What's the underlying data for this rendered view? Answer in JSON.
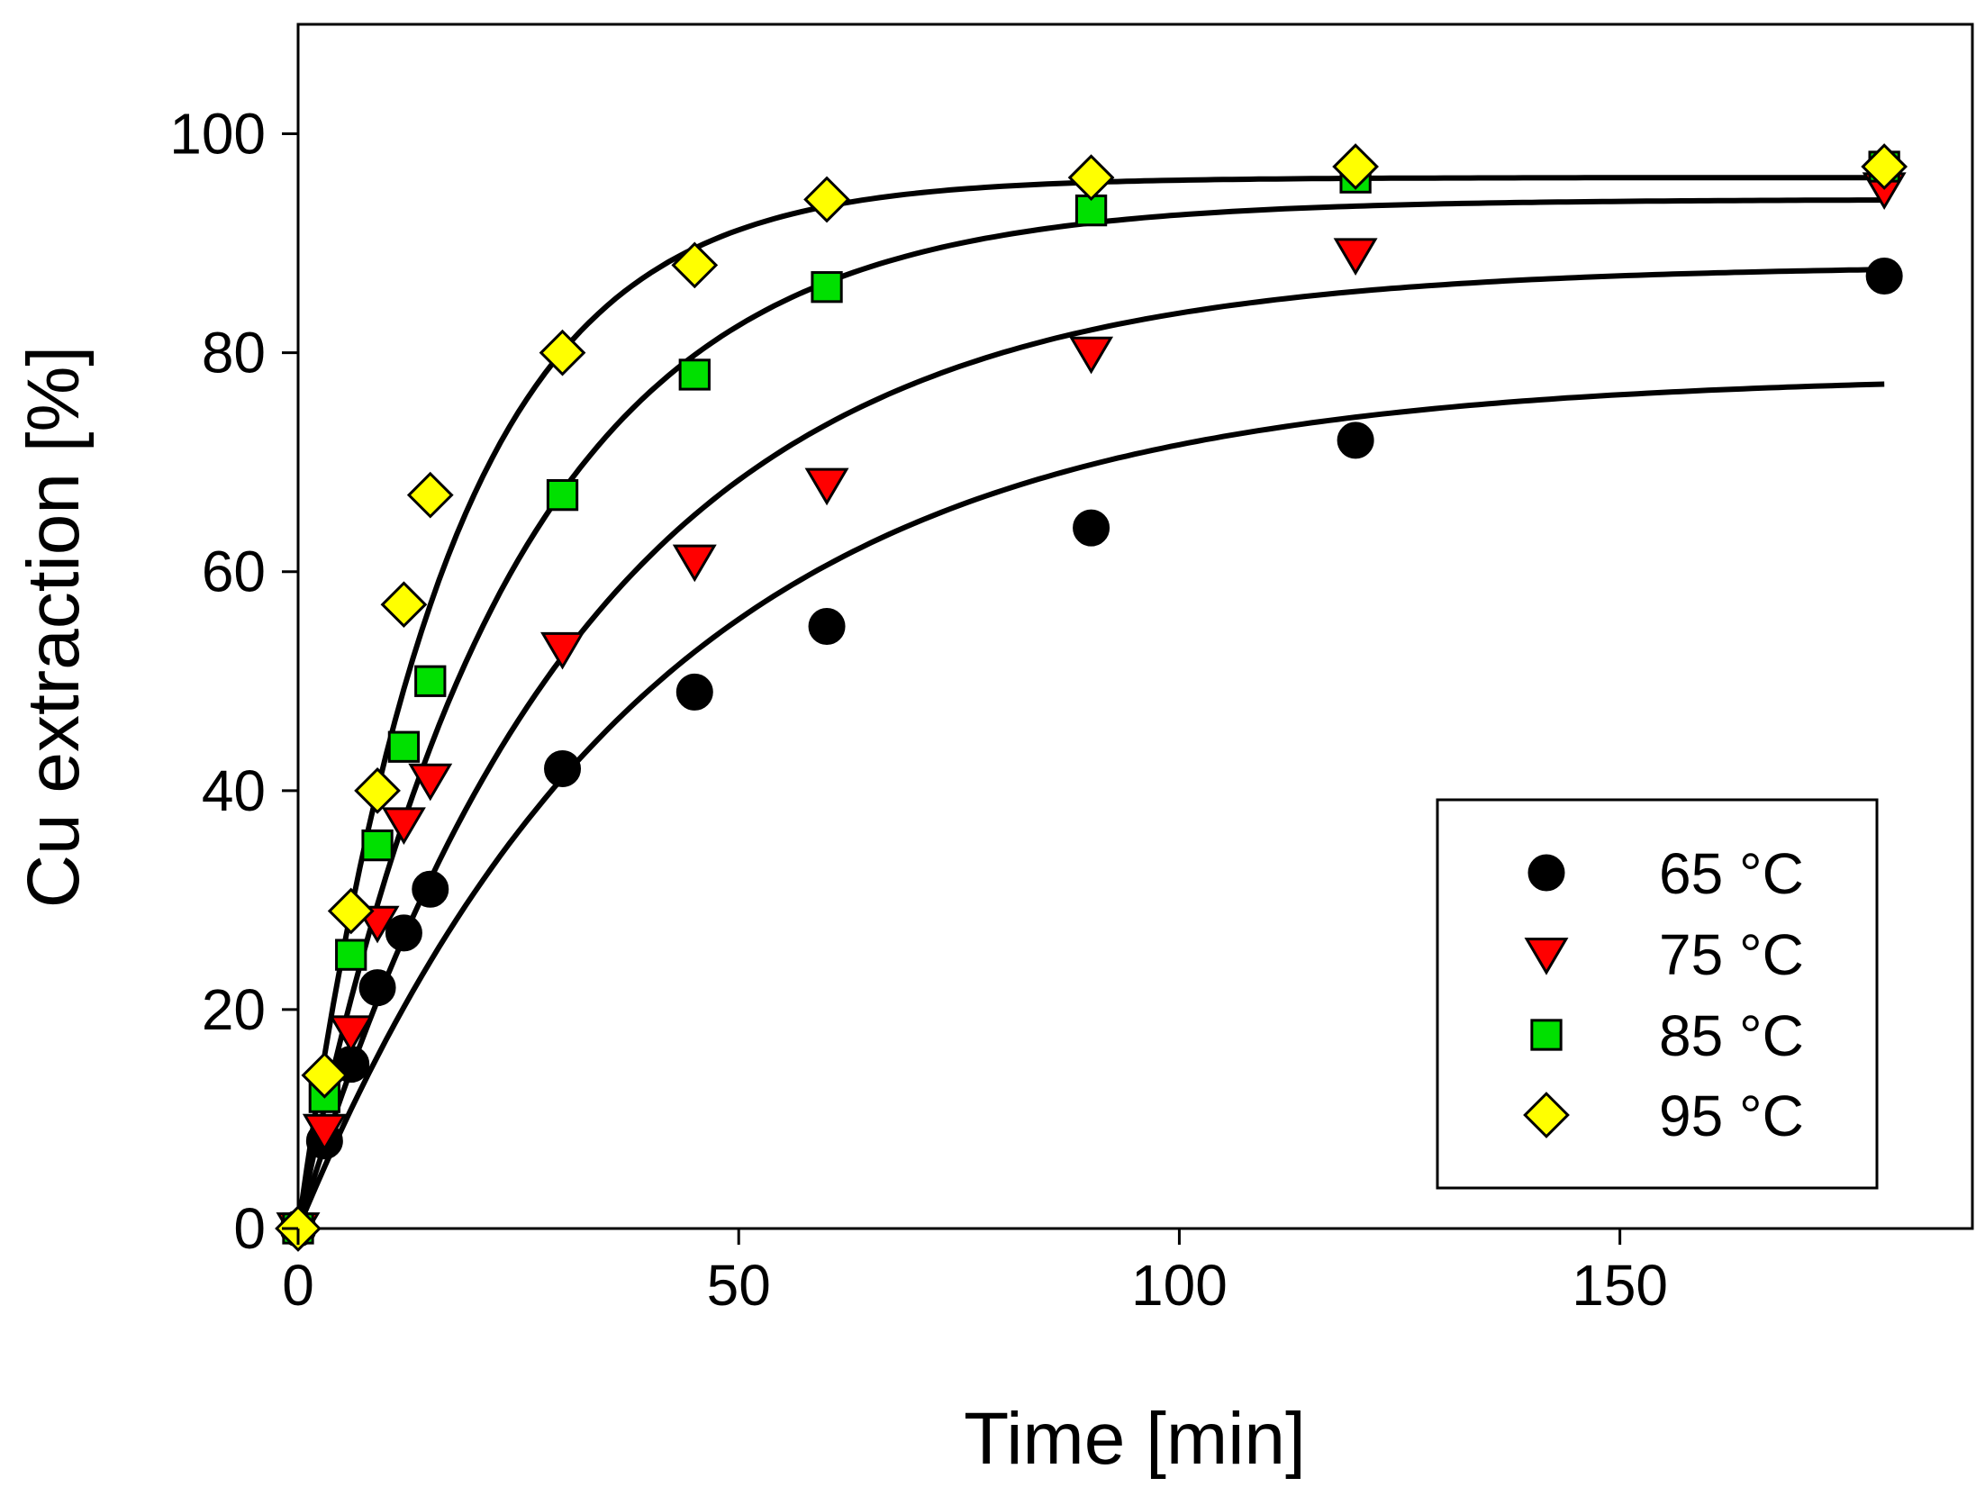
{
  "chart_data": {
    "type": "scatter",
    "xlabel": "Time [min]",
    "ylabel": "Cu extraction [%]",
    "xlim": [
      0,
      190
    ],
    "ylim": [
      0,
      110
    ],
    "xticks": [
      0,
      50,
      100,
      150
    ],
    "yticks": [
      0,
      20,
      40,
      60,
      80,
      100
    ],
    "grid": false,
    "legend_position": "bottom-right",
    "series": [
      {
        "name": "65 °C",
        "marker": "circle",
        "color": "#000000",
        "x": [
          0,
          3,
          6,
          9,
          12,
          15,
          30,
          45,
          60,
          90,
          120,
          180
        ],
        "y": [
          0,
          8,
          15,
          22,
          27,
          31,
          42,
          49,
          55,
          64,
          72,
          87
        ],
        "fit": {
          "max": 78.0,
          "k": 0.025
        }
      },
      {
        "name": "75 °C",
        "marker": "triangle-down",
        "color": "#ff0000",
        "x": [
          0,
          3,
          6,
          9,
          12,
          15,
          30,
          45,
          60,
          90,
          120,
          180
        ],
        "y": [
          0,
          9,
          18,
          28,
          37,
          41,
          53,
          61,
          68,
          80,
          89,
          95
        ],
        "fit": {
          "max": 88.0,
          "k": 0.03
        }
      },
      {
        "name": "85 °C",
        "marker": "square",
        "color": "#00e000",
        "x": [
          0,
          3,
          6,
          9,
          12,
          15,
          30,
          45,
          60,
          90,
          120,
          180
        ],
        "y": [
          0,
          12,
          25,
          35,
          44,
          50,
          67,
          78,
          86,
          93,
          96,
          97
        ],
        "fit": {
          "max": 94.0,
          "k": 0.042
        }
      },
      {
        "name": "95 °C",
        "marker": "diamond",
        "color": "#ffff00",
        "x": [
          0,
          3,
          6,
          9,
          12,
          15,
          30,
          45,
          60,
          90,
          120,
          180
        ],
        "y": [
          0,
          14,
          29,
          40,
          57,
          67,
          80,
          88,
          94,
          96,
          97,
          97
        ],
        "fit": {
          "max": 96.0,
          "k": 0.06
        }
      }
    ]
  }
}
